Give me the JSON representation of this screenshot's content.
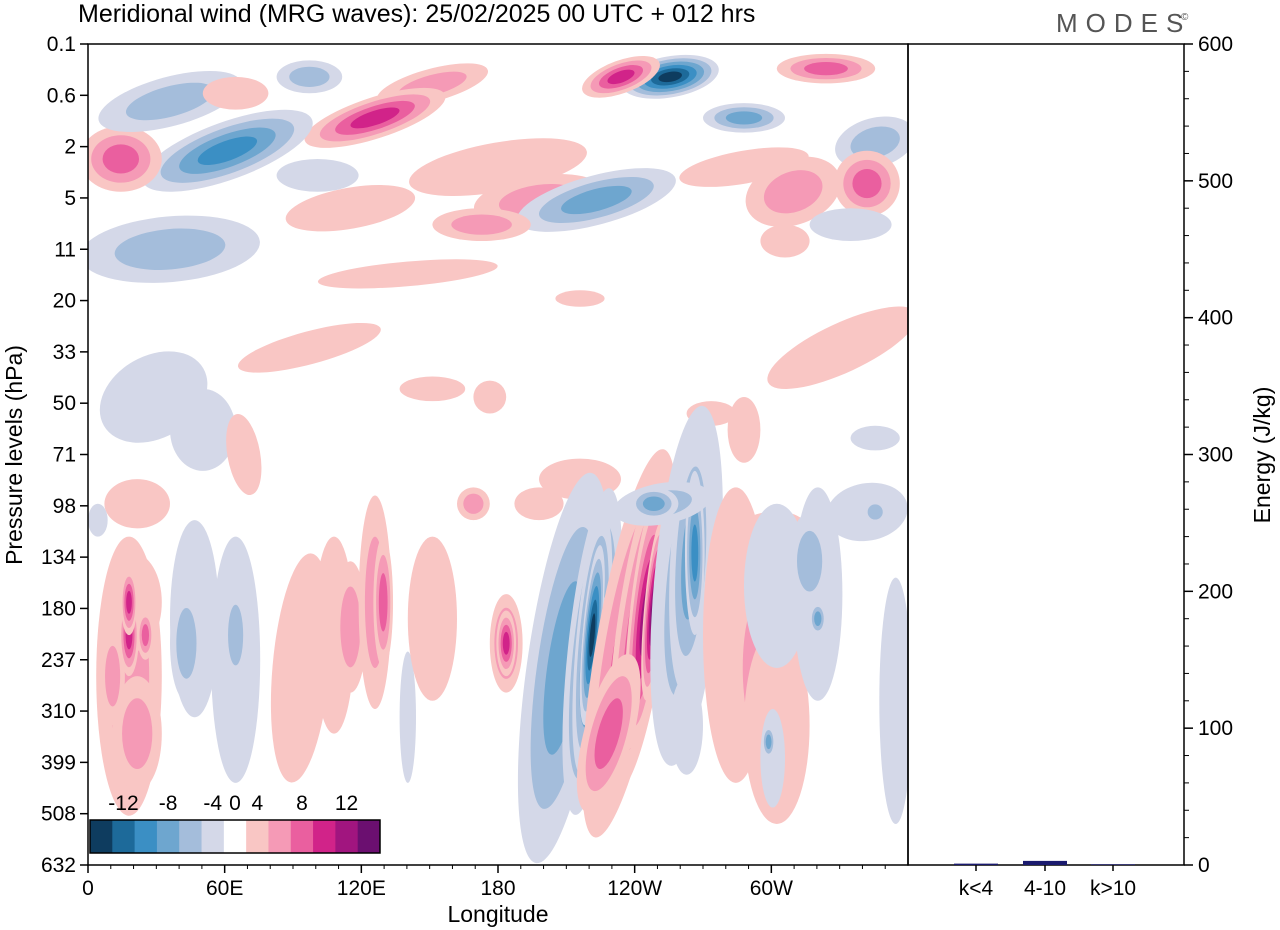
{
  "header": {
    "title": "Meridional wind (MRG waves):  25/02/2025  00 UTC  + 012 hrs",
    "logo": "MODES",
    "logo_mark": "©"
  },
  "chart_data": [
    {
      "type": "heatmap",
      "xlabel": "Longitude",
      "ylabel": "Pressure levels (hPa)",
      "x_tick_labels": [
        "0",
        "60E",
        "120E",
        "180",
        "120W",
        "60W"
      ],
      "x_range_deg": [
        0,
        360
      ],
      "y_tick_labels": [
        "0.1",
        "0.6",
        "2",
        "5",
        "11",
        "20",
        "33",
        "50",
        "71",
        "98",
        "134",
        "180",
        "237",
        "310",
        "399",
        "508",
        "632"
      ],
      "colorbar": {
        "tick_labels": [
          "-12",
          "-8",
          "-4",
          "0",
          "4",
          "8",
          "12"
        ],
        "levels": [
          -14,
          -12,
          -10,
          -8,
          -6,
          -4,
          -2,
          2,
          4,
          6,
          8,
          10,
          12,
          14
        ],
        "colors": [
          "#0e3c5f",
          "#1d6a9a",
          "#3b8fc4",
          "#6ea6cf",
          "#a4bddb",
          "#d4d8e8",
          "#ffffff",
          "#f9c6c4",
          "#f59ab6",
          "#ea5f9f",
          "#d12389",
          "#a1157f",
          "#6b0f70"
        ]
      }
    },
    {
      "type": "bar",
      "ylabel": "Energy (J/kg)",
      "categories": [
        "k<4",
        "4-10",
        "k>10"
      ],
      "values": [
        1,
        3,
        0.5
      ],
      "ylim": [
        0,
        600
      ],
      "y_tick_labels": [
        "0",
        "100",
        "200",
        "300",
        "400",
        "500",
        "600"
      ],
      "bar_color": "#1a1a6e"
    }
  ]
}
